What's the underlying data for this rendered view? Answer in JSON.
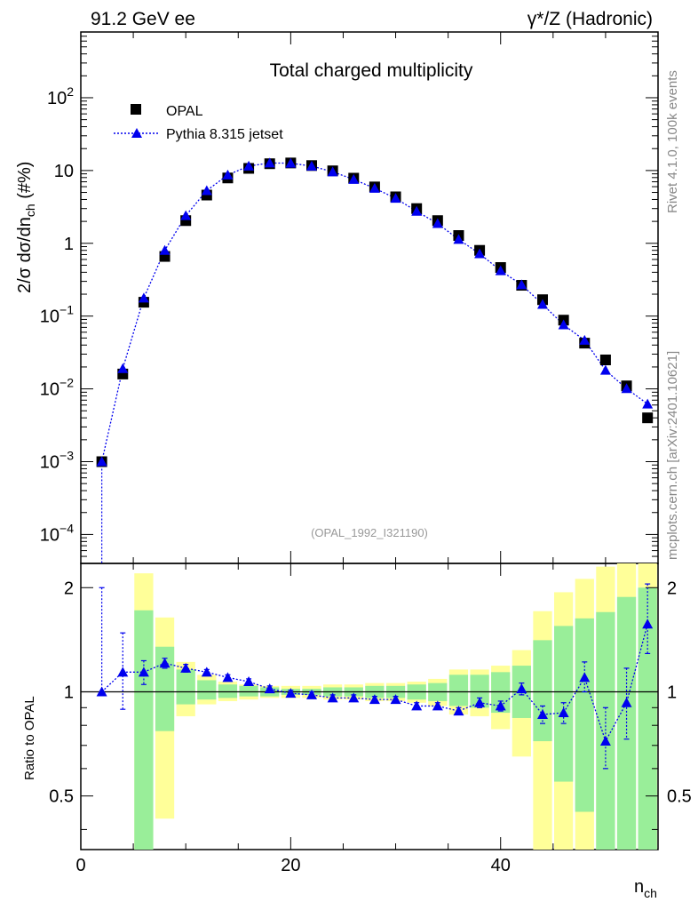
{
  "header": {
    "left": "91.2 GeV ee",
    "right": "γ*/Z (Hadronic)"
  },
  "side_labels": {
    "rivet": "Rivet 4.1.0,  100k events",
    "mcplots": "mcplots.cern.ch [arXiv:2401.10621]"
  },
  "chart_data": {
    "type": "scatter",
    "title": "Total charged multiplicity",
    "analysis_tag": "(OPAL_1992_I321190)",
    "xlabel": "n",
    "xlabel_sub": "ch",
    "ylabel": "2/σ  dσ/dn",
    "ylabel_sub": "ch",
    "ylabel_suffix": " (#%)",
    "xlim": [
      0,
      55
    ],
    "ylim": [
      4e-05,
      800
    ],
    "yscale": "log",
    "x_ticks": [
      "0",
      "20",
      "40"
    ],
    "legend": {
      "position": "top-left",
      "entries": [
        "OPAL",
        "Pythia 8.315 jetset"
      ]
    },
    "x": [
      2,
      4,
      6,
      8,
      10,
      12,
      14,
      16,
      18,
      20,
      22,
      24,
      26,
      28,
      30,
      32,
      34,
      36,
      38,
      40,
      42,
      44,
      46,
      48,
      50,
      52,
      54
    ],
    "series": [
      {
        "name": "OPAL",
        "color": "#000000",
        "marker": "square",
        "values": [
          0.001,
          0.016,
          0.155,
          0.66,
          2.05,
          4.6,
          7.9,
          10.7,
          12.4,
          12.7,
          11.7,
          9.9,
          7.85,
          5.95,
          4.35,
          3.0,
          2.05,
          1.28,
          0.8,
          0.465,
          0.265,
          0.168,
          0.088,
          0.0425,
          0.025,
          0.011,
          0.004
        ]
      },
      {
        "name": "Pythia 8.315 jetset",
        "color": "#0000ee",
        "marker": "triangle",
        "values": [
          0.001,
          0.019,
          0.177,
          0.8,
          2.4,
          5.3,
          8.7,
          11.5,
          12.7,
          12.6,
          11.5,
          9.6,
          7.55,
          5.7,
          4.15,
          2.75,
          1.87,
          1.13,
          0.72,
          0.42,
          0.27,
          0.145,
          0.076,
          0.0465,
          0.018,
          0.0101,
          0.0062
        ]
      }
    ],
    "ratio": {
      "ylabel": "Ratio to OPAL",
      "ylim": [
        0.35,
        2.35
      ],
      "ticks": [
        "0.5",
        "1",
        "2"
      ],
      "x": [
        2,
        4,
        6,
        8,
        10,
        12,
        14,
        16,
        18,
        20,
        22,
        24,
        26,
        28,
        30,
        32,
        34,
        36,
        38,
        40,
        42,
        44,
        46,
        48,
        50,
        52,
        54
      ],
      "mc_ratio": [
        1.0,
        1.14,
        1.14,
        1.21,
        1.17,
        1.14,
        1.1,
        1.07,
        1.02,
        0.99,
        0.98,
        0.96,
        0.96,
        0.95,
        0.95,
        0.91,
        0.91,
        0.88,
        0.93,
        0.91,
        1.02,
        0.86,
        0.87,
        1.1,
        0.72,
        0.93,
        1.57
      ],
      "mc_err_lo": [
        0.0,
        0.25,
        0.09,
        0.04,
        0.03,
        0.02,
        0.02,
        0.02,
        0.02,
        0.02,
        0.02,
        0.02,
        0.02,
        0.02,
        0.02,
        0.02,
        0.02,
        0.02,
        0.03,
        0.03,
        0.04,
        0.05,
        0.06,
        0.1,
        0.12,
        0.2,
        0.28
      ],
      "mc_err_hi": [
        1.0,
        0.34,
        0.09,
        0.04,
        0.03,
        0.02,
        0.02,
        0.02,
        0.02,
        0.02,
        0.02,
        0.02,
        0.02,
        0.02,
        0.02,
        0.02,
        0.02,
        0.02,
        0.03,
        0.03,
        0.04,
        0.05,
        0.06,
        0.12,
        0.18,
        0.24,
        0.48
      ],
      "green_band": [
        [
          6,
          0.35,
          1.72
        ],
        [
          8,
          0.77,
          1.35
        ],
        [
          10,
          0.92,
          1.16
        ],
        [
          12,
          0.95,
          1.08
        ],
        [
          14,
          0.96,
          1.05
        ],
        [
          16,
          0.97,
          1.04
        ],
        [
          18,
          0.97,
          1.03
        ],
        [
          20,
          0.98,
          1.02
        ],
        [
          22,
          0.98,
          1.02
        ],
        [
          24,
          0.97,
          1.03
        ],
        [
          26,
          0.97,
          1.03
        ],
        [
          28,
          0.96,
          1.04
        ],
        [
          30,
          0.96,
          1.04
        ],
        [
          32,
          0.95,
          1.05
        ],
        [
          34,
          0.94,
          1.06
        ],
        [
          36,
          0.91,
          1.12
        ],
        [
          38,
          0.9,
          1.12
        ],
        [
          40,
          0.87,
          1.14
        ],
        [
          42,
          0.84,
          1.19
        ],
        [
          44,
          0.72,
          1.41
        ],
        [
          46,
          0.55,
          1.55
        ],
        [
          48,
          0.45,
          1.63
        ],
        [
          50,
          0.35,
          1.7
        ],
        [
          52,
          0.35,
          1.88
        ],
        [
          54,
          0.35,
          2.0
        ]
      ],
      "yellow_band": [
        [
          6,
          0.35,
          2.2
        ],
        [
          8,
          0.43,
          1.64
        ],
        [
          10,
          0.85,
          1.22
        ],
        [
          12,
          0.92,
          1.12
        ],
        [
          14,
          0.94,
          1.07
        ],
        [
          16,
          0.95,
          1.05
        ],
        [
          18,
          0.96,
          1.04
        ],
        [
          20,
          0.96,
          1.04
        ],
        [
          22,
          0.96,
          1.04
        ],
        [
          24,
          0.95,
          1.05
        ],
        [
          26,
          0.95,
          1.05
        ],
        [
          28,
          0.94,
          1.06
        ],
        [
          30,
          0.94,
          1.06
        ],
        [
          32,
          0.93,
          1.07
        ],
        [
          34,
          0.91,
          1.09
        ],
        [
          36,
          0.86,
          1.16
        ],
        [
          38,
          0.85,
          1.16
        ],
        [
          40,
          0.78,
          1.19
        ],
        [
          42,
          0.65,
          1.32
        ],
        [
          44,
          0.35,
          1.71
        ],
        [
          46,
          0.35,
          1.94
        ],
        [
          48,
          0.35,
          2.12
        ],
        [
          50,
          0.35,
          2.3
        ],
        [
          52,
          0.35,
          2.35
        ],
        [
          54,
          0.35,
          2.35
        ]
      ]
    }
  }
}
